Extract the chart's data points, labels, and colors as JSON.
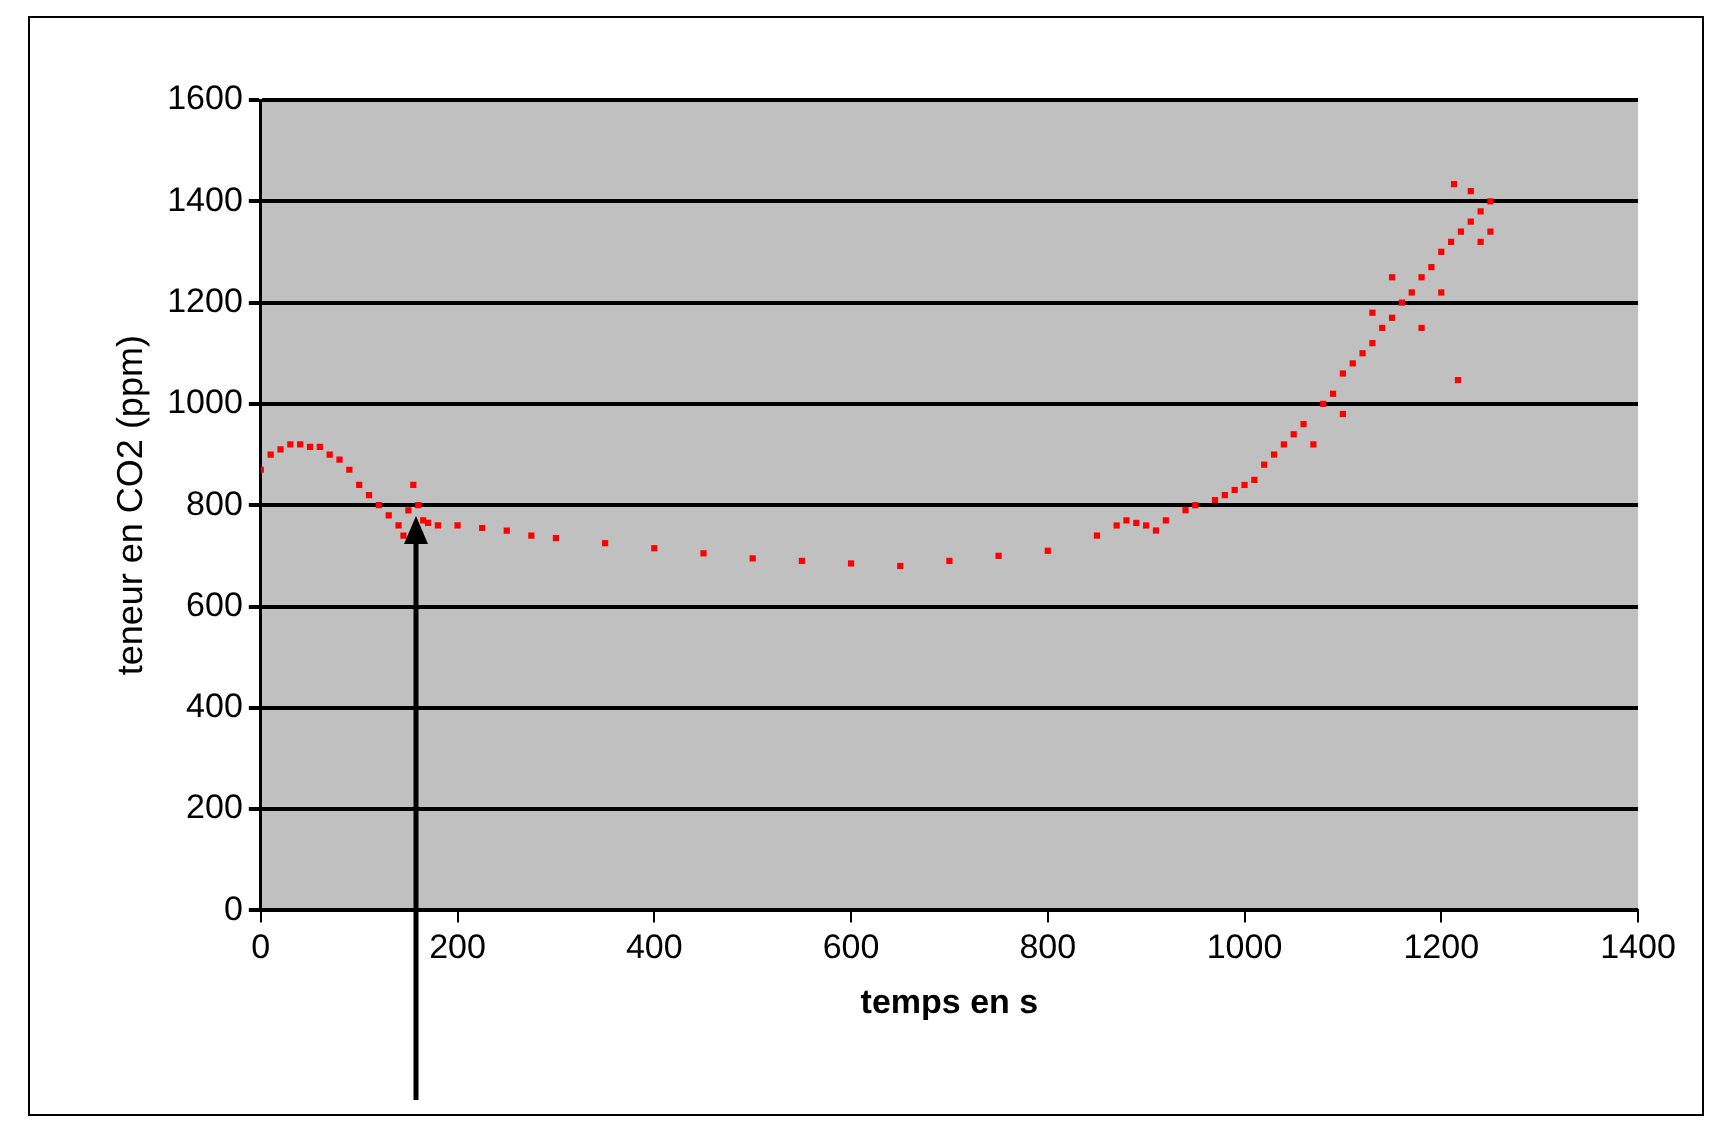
{
  "chart_data": {
    "type": "scatter",
    "xlabel": "temps en s",
    "ylabel": "teneur en CO2 (ppm)",
    "series": [
      {
        "color": "#ff0000",
        "x": [
          0,
          10,
          20,
          30,
          40,
          50,
          60,
          70,
          80,
          90,
          100,
          110,
          120,
          130,
          140,
          145,
          150,
          155,
          160,
          165,
          170,
          180,
          200,
          225,
          250,
          275,
          300,
          350,
          400,
          450,
          500,
          550,
          600,
          650,
          700,
          750,
          800,
          850,
          870,
          880,
          890,
          900,
          910,
          920,
          940,
          950,
          970,
          980,
          990,
          1000,
          1010,
          1020,
          1030,
          1040,
          1050,
          1060,
          1070,
          1080,
          1090,
          1100,
          1100,
          1110,
          1120,
          1130,
          1130,
          1140,
          1150,
          1150,
          1160,
          1170,
          1180,
          1180,
          1190,
          1200,
          1200,
          1210,
          1213,
          1217,
          1220,
          1230,
          1230,
          1240,
          1240,
          1250,
          1250
        ],
        "values": [
          870,
          900,
          910,
          920,
          920,
          915,
          915,
          900,
          890,
          870,
          840,
          820,
          800,
          780,
          760,
          740,
          790,
          840,
          800,
          770,
          765,
          760,
          760,
          755,
          750,
          740,
          735,
          725,
          715,
          705,
          695,
          690,
          685,
          680,
          690,
          700,
          710,
          740,
          760,
          770,
          765,
          760,
          750,
          770,
          790,
          800,
          810,
          820,
          830,
          840,
          850,
          880,
          900,
          920,
          940,
          960,
          920,
          1000,
          1020,
          1060,
          980,
          1080,
          1100,
          1120,
          1180,
          1150,
          1170,
          1250,
          1200,
          1220,
          1250,
          1150,
          1270,
          1300,
          1220,
          1320,
          1434,
          1047,
          1340,
          1360,
          1420,
          1380,
          1320,
          1400,
          1340
        ]
      }
    ],
    "xlim": [
      0,
      1400
    ],
    "xticks": [
      0,
      200,
      400,
      600,
      800,
      1000,
      1200,
      1400
    ],
    "ylim": [
      0,
      1600
    ],
    "yticks": [
      0,
      200,
      400,
      600,
      800,
      1000,
      1200,
      1400,
      1600
    ],
    "grid": "y",
    "legend": false,
    "marker": "square"
  }
}
